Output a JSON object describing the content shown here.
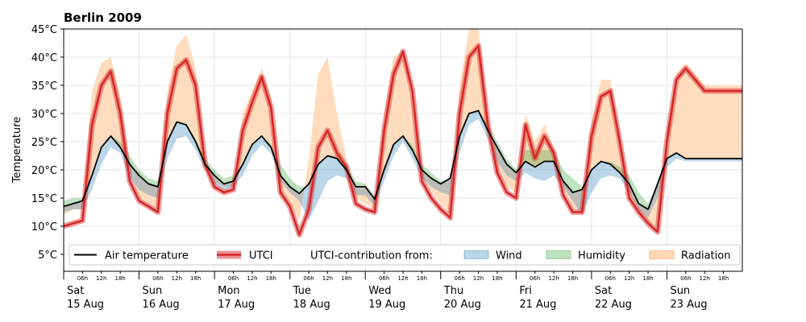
{
  "chart_data": {
    "type": "area",
    "title": "Berlin 2009",
    "ylabel": "Temperature",
    "ylim": [
      2,
      45
    ],
    "y_ticks": [
      5,
      10,
      15,
      20,
      25,
      30,
      35,
      40,
      45
    ],
    "y_tick_labels": [
      "5°C",
      "10°C",
      "15°C",
      "20°C",
      "25°C",
      "30°C",
      "35°C",
      "40°C",
      "45°C"
    ],
    "grid": true,
    "hour_ticks": [
      "06h",
      "12h",
      "18h"
    ],
    "days": [
      {
        "weekday": "Sat",
        "date": "15 Aug"
      },
      {
        "weekday": "Sun",
        "date": "16 Aug"
      },
      {
        "weekday": "Mon",
        "date": "17 Aug"
      },
      {
        "weekday": "Tue",
        "date": "18 Aug"
      },
      {
        "weekday": "Wed",
        "date": "19 Aug"
      },
      {
        "weekday": "Thu",
        "date": "20 Aug"
      },
      {
        "weekday": "Fri",
        "date": "21 Aug"
      },
      {
        "weekday": "Sat",
        "date": "22 Aug"
      },
      {
        "weekday": "Sun",
        "date": "23 Aug"
      }
    ],
    "x_hours": [
      0,
      3,
      6,
      9,
      12,
      15,
      18,
      21,
      24,
      27,
      30,
      33,
      36,
      39,
      42,
      45,
      48,
      51,
      54,
      57,
      60,
      63,
      66,
      69,
      72,
      75,
      78,
      81,
      84,
      87,
      90,
      93,
      96,
      99,
      102,
      105,
      108,
      111,
      114,
      117,
      120,
      123,
      126,
      129,
      132,
      135,
      138,
      141,
      144,
      147,
      150,
      153,
      156,
      159,
      162,
      165,
      168,
      171,
      174,
      177,
      180,
      183,
      186,
      189,
      192,
      195,
      198,
      201,
      204,
      207,
      210,
      213,
      216
    ],
    "series": [
      {
        "name": "Air temperature",
        "key": "air",
        "color": "#000000",
        "values": [
          13.5,
          14,
          14.5,
          19,
          24,
          26,
          24,
          21,
          19,
          17.5,
          17,
          25,
          28.5,
          28,
          25,
          21,
          19,
          17.5,
          18,
          21,
          24.5,
          26,
          24,
          19,
          17,
          15.8,
          17.5,
          21,
          22.5,
          22,
          20,
          17,
          17,
          14.8,
          20,
          24.5,
          26,
          23.5,
          20,
          18.5,
          17.5,
          18.5,
          26,
          30,
          30.5,
          27,
          24,
          21,
          19.5,
          21.5,
          20.5,
          21.5,
          21.5,
          18,
          16,
          16.5,
          20,
          21.5,
          21,
          19.5,
          17.5,
          14,
          13,
          17.5,
          22,
          23,
          22,
          22,
          22,
          22,
          22,
          22,
          22
        ]
      },
      {
        "name": "UTCI",
        "key": "utci",
        "color": "#d62728",
        "values": [
          10,
          10.5,
          11,
          28,
          35,
          37.5,
          30,
          18,
          14.5,
          13.5,
          12.5,
          30,
          38,
          39.5,
          35,
          21,
          17,
          16,
          16.5,
          27,
          32,
          36.5,
          31,
          16,
          13.5,
          8.5,
          13,
          24,
          27,
          23,
          20.5,
          14,
          13,
          12.5,
          27,
          37,
          41,
          34,
          18,
          15,
          13,
          11.5,
          30,
          40,
          42,
          28,
          19.5,
          16,
          15,
          28,
          22,
          26,
          23,
          15.5,
          12.5,
          12.5,
          26,
          33,
          34,
          25,
          15,
          12.5,
          10.5,
          9,
          25,
          36,
          38,
          36,
          34,
          34,
          34,
          34,
          34
        ]
      },
      {
        "name": "Wind",
        "key": "wind",
        "color": "#1f77b4"
      },
      {
        "name": "Humidity",
        "key": "humidity",
        "color": "#2ca02c"
      },
      {
        "name": "Radiation",
        "key": "radiation",
        "color": "#ff7f0e"
      }
    ],
    "wind_low": [
      12.5,
      13,
      13,
      16.5,
      21,
      24,
      23,
      18.5,
      16.5,
      15.5,
      15,
      22,
      25.5,
      26,
      23.5,
      20,
      17.5,
      16.5,
      17,
      19,
      22.5,
      24.5,
      23,
      18,
      16,
      14.5,
      11,
      14.5,
      18,
      19,
      18.5,
      15.5,
      15.5,
      13.5,
      18,
      22.5,
      25,
      22,
      18.5,
      17,
      16,
      15.5,
      23,
      28,
      29,
      25.5,
      21.5,
      19,
      18,
      19.5,
      18.5,
      18,
      19,
      17,
      14.5,
      12,
      16,
      18.5,
      19,
      18.5,
      16,
      13,
      11.5,
      15,
      20.5,
      22,
      21.5,
      21.5,
      21.5,
      21.5,
      21.5,
      21.5,
      21.5
    ],
    "humidity_high": [
      14.5,
      15,
      15,
      19.5,
      24,
      26,
      25,
      22.5,
      20,
      18.5,
      18,
      25,
      28.5,
      28,
      25.5,
      22,
      20,
      18.5,
      19,
      21,
      24.5,
      26,
      24.5,
      21,
      18.5,
      17,
      17,
      21,
      22.5,
      22.5,
      21,
      18,
      17.5,
      15.5,
      20.5,
      24.5,
      26,
      24.5,
      21,
      19.5,
      18,
      18.5,
      26,
      30,
      30.5,
      28,
      25,
      22,
      20,
      23.5,
      23.5,
      23.5,
      23.5,
      20,
      18.5,
      17,
      20,
      21.5,
      21.5,
      20.5,
      19,
      16,
      14,
      17.5,
      22,
      23,
      22,
      22,
      22,
      22,
      22,
      22,
      22
    ],
    "radiation_high": [
      12,
      13,
      13,
      34,
      39,
      40,
      33,
      20,
      15,
      14,
      13,
      34,
      42,
      44,
      38,
      22,
      18,
      17,
      17,
      30,
      34,
      38,
      33,
      17,
      14,
      11,
      22,
      37,
      40,
      30,
      22,
      15,
      14,
      13,
      30,
      40,
      41,
      35,
      19,
      16,
      14,
      12,
      35,
      45,
      45,
      30,
      20,
      17,
      16,
      30,
      25,
      28,
      24,
      17,
      13,
      13,
      29,
      36,
      36,
      26,
      16,
      13,
      10.5,
      10,
      27,
      37,
      39,
      37,
      35,
      35,
      35,
      35,
      35
    ],
    "legend": [
      "Air temperature",
      "UTCI",
      "UTCI-contribution from:",
      "Wind",
      "Humidity",
      "Radiation"
    ],
    "legend_position": "bottom"
  }
}
